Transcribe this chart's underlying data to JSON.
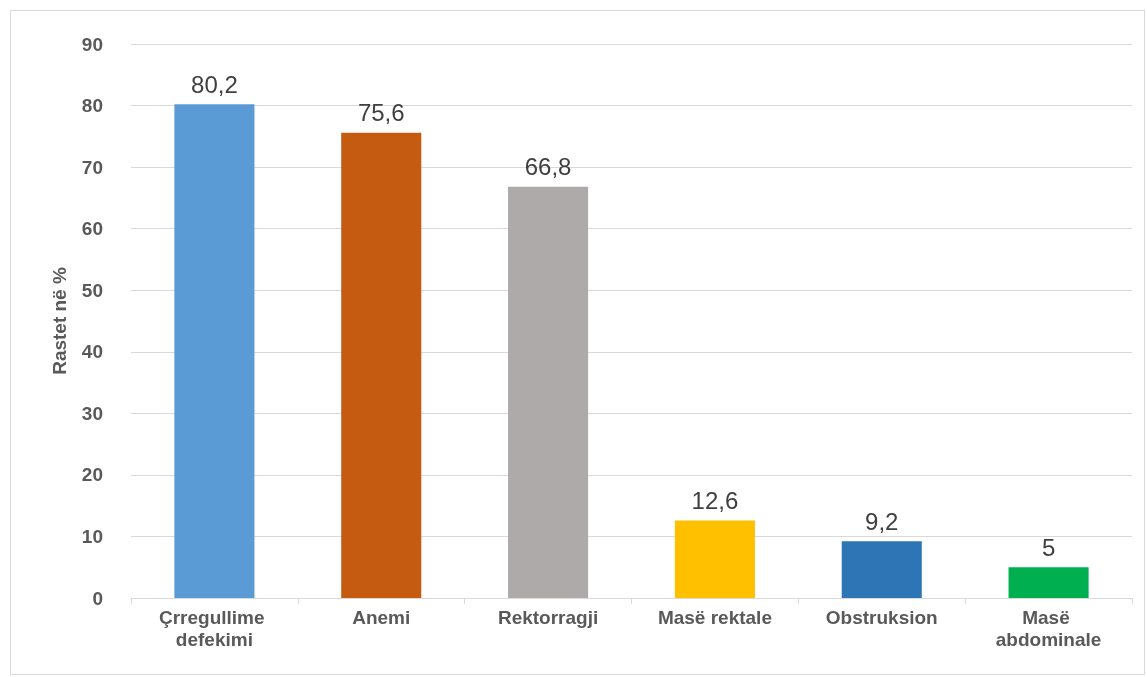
{
  "chart_data": {
    "type": "bar",
    "ylabel": "Rastet në %",
    "categories": [
      "Çrregullime defekimi",
      "Anemi",
      "Rektorragji",
      "Masë rektale",
      "Obstruksion",
      "Masë abdominale"
    ],
    "values": [
      80.2,
      75.6,
      66.8,
      12.6,
      9.2,
      5
    ],
    "colors": [
      "#5b9bd5",
      "#c55a11",
      "#aeaaaa",
      "#ffc000",
      "#2e75b6",
      "#00b050"
    ],
    "value_labels": [
      "80,2",
      "75,6",
      "66,8",
      "12,6",
      "9,2",
      "5"
    ],
    "ylim": [
      0,
      90
    ],
    "yticks": [
      0,
      10,
      20,
      30,
      40,
      50,
      60,
      70,
      80,
      90
    ],
    "grid": "y"
  }
}
